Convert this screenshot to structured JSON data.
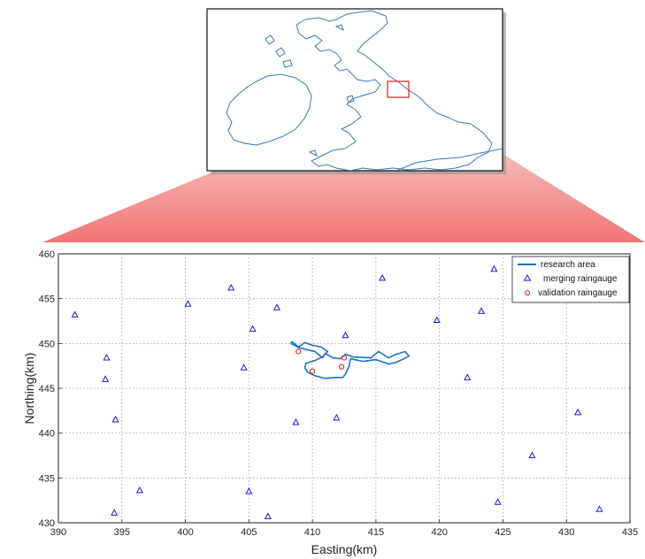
{
  "chart_data": {
    "type": "scatter",
    "xlabel": "Easting(km)",
    "ylabel": "Northing(km)",
    "xlim": [
      390,
      435
    ],
    "ylim": [
      430,
      460
    ],
    "xticks": [
      390,
      395,
      400,
      405,
      410,
      415,
      420,
      425,
      430,
      435
    ],
    "yticks": [
      430,
      435,
      440,
      445,
      450,
      455,
      460
    ],
    "grid": true,
    "legend_position": "top-right",
    "colors": {
      "research": "#1f6fc5",
      "merging": "#1a1adc",
      "validation": "#e01818",
      "inset_box": "#e02020",
      "coast": "#3a78b5"
    },
    "series": [
      {
        "name": "research area",
        "marker": "line",
        "x": [
          408.3,
          409.0,
          410.2,
          410.8,
          411.0,
          411.6,
          412.2,
          412.6,
          413.2,
          414.6,
          415.2,
          416.0,
          416.6,
          417.3,
          417.6,
          417.2,
          416.6,
          416.0,
          415.0,
          414.0,
          413.0,
          412.9,
          412.6,
          412.4,
          411.8,
          411.0,
          410.2,
          409.6,
          409.4,
          409.5,
          410.2,
          410.8,
          411.2,
          410.7,
          410.0,
          409.4,
          408.9,
          408.4,
          408.3
        ],
        "y": [
          450.0,
          449.5,
          449.1,
          448.4,
          448.9,
          448.4,
          448.3,
          448.8,
          448.5,
          448.4,
          449.1,
          448.4,
          448.8,
          449.1,
          448.6,
          448.3,
          447.9,
          447.7,
          448.2,
          448.0,
          448.3,
          447.5,
          446.6,
          446.2,
          446.2,
          446.1,
          446.4,
          446.8,
          447.3,
          447.8,
          448.1,
          448.5,
          449.1,
          449.6,
          449.8,
          450.1,
          449.6,
          450.2,
          450.0
        ]
      },
      {
        "name": "merging raingauge",
        "marker": "triangle",
        "x": [
          391.3,
          393.8,
          393.7,
          394.5,
          394.4,
          396.4,
          400.2,
          403.6,
          404.6,
          405.0,
          405.3,
          406.5,
          407.2,
          408.7,
          411.9,
          412.6,
          415.5,
          419.8,
          422.2,
          423.3,
          424.3,
          424.6,
          427.3,
          430.9,
          432.6
        ],
        "y": [
          453.2,
          448.4,
          446.0,
          441.5,
          431.1,
          433.6,
          454.4,
          456.2,
          447.3,
          433.5,
          451.6,
          430.7,
          454.0,
          441.2,
          441.7,
          450.9,
          457.3,
          452.6,
          446.2,
          453.6,
          458.3,
          432.3,
          437.5,
          442.3,
          431.5
        ]
      },
      {
        "name": "validation raingauge",
        "marker": "circle",
        "x": [
          408.9,
          410.0,
          412.3,
          412.5
        ],
        "y": [
          449.1,
          446.9,
          447.4,
          448.4
        ]
      }
    ]
  }
}
